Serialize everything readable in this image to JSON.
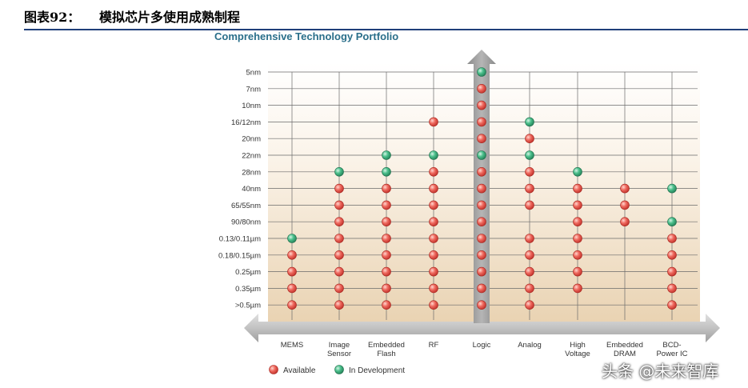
{
  "header": {
    "figure_label": "图表92：",
    "figure_title": "模拟芯片多使用成熟制程"
  },
  "watermark": "头条 @未来智库",
  "colors": {
    "available": "#e8524a",
    "in_development": "#39b07a",
    "title": "#2a6f8a"
  },
  "chart_data": {
    "type": "scatter",
    "title": "Comprehensive Technology Portfolio",
    "nodes": [
      "5nm",
      "7nm",
      "10nm",
      "16/12nm",
      "20nm",
      "22nm",
      "28nm",
      "40nm",
      "65/55nm",
      "90/80nm",
      "0.13/0.11µm",
      "0.18/0.15µm",
      "0.25µm",
      "0.35µm",
      ">0.5µm"
    ],
    "categories": [
      {
        "label": [
          "MEMS"
        ],
        "available": [
          "0.18/0.15µm",
          "0.25µm",
          "0.35µm",
          ">0.5µm"
        ],
        "in_development": [
          "0.13/0.11µm"
        ]
      },
      {
        "label": [
          "Image",
          "Sensor"
        ],
        "available": [
          "40nm",
          "65/55nm",
          "90/80nm",
          "0.13/0.11µm",
          "0.18/0.15µm",
          "0.25µm",
          "0.35µm",
          ">0.5µm"
        ],
        "in_development": [
          "28nm"
        ]
      },
      {
        "label": [
          "Embedded",
          "Flash"
        ],
        "available": [
          "40nm",
          "65/55nm",
          "90/80nm",
          "0.13/0.11µm",
          "0.18/0.15µm",
          "0.25µm",
          "0.35µm",
          ">0.5µm"
        ],
        "in_development": [
          "22nm",
          "28nm"
        ]
      },
      {
        "label": [
          "RF"
        ],
        "available": [
          "16/12nm",
          "28nm",
          "40nm",
          "65/55nm",
          "90/80nm",
          "0.13/0.11µm",
          "0.18/0.15µm",
          "0.25µm",
          "0.35µm",
          ">0.5µm"
        ],
        "in_development": [
          "22nm"
        ]
      },
      {
        "label": [
          "Logic"
        ],
        "available": [
          "7nm",
          "10nm",
          "16/12nm",
          "20nm",
          "28nm",
          "40nm",
          "65/55nm",
          "90/80nm",
          "0.13/0.11µm",
          "0.18/0.15µm",
          "0.25µm",
          "0.35µm",
          ">0.5µm"
        ],
        "in_development": [
          "5nm",
          "22nm"
        ]
      },
      {
        "label": [
          "Analog"
        ],
        "available": [
          "20nm",
          "28nm",
          "40nm",
          "65/55nm",
          "0.13/0.11µm",
          "0.18/0.15µm",
          "0.25µm",
          "0.35µm",
          ">0.5µm"
        ],
        "in_development": [
          "16/12nm",
          "22nm"
        ]
      },
      {
        "label": [
          "High",
          "Voltage"
        ],
        "available": [
          "40nm",
          "65/55nm",
          "90/80nm",
          "0.13/0.11µm",
          "0.18/0.15µm",
          "0.25µm",
          "0.35µm"
        ],
        "in_development": [
          "28nm"
        ]
      },
      {
        "label": [
          "Embedded",
          "DRAM"
        ],
        "available": [
          "40nm",
          "65/55nm",
          "90/80nm"
        ],
        "in_development": []
      },
      {
        "label": [
          "BCD-",
          "Power IC"
        ],
        "available": [
          "0.13/0.11µm",
          "0.18/0.15µm",
          "0.25µm",
          "0.35µm",
          ">0.5µm"
        ],
        "in_development": [
          "40nm",
          "90/80nm"
        ]
      }
    ],
    "legend": [
      {
        "key": "available",
        "label": "Available"
      },
      {
        "key": "in_development",
        "label": "In Development"
      }
    ]
  }
}
